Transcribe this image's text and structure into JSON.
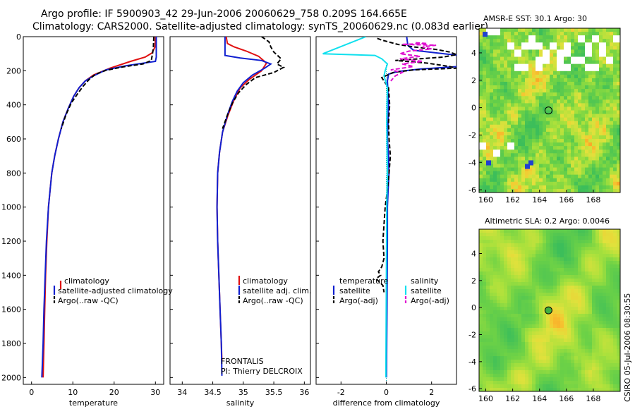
{
  "figure": {
    "title_line1": "Argo profile: IF 5900903_42 29-Jun-2006 20060629_758 0.209S 164.665E",
    "title_line2": "Climatology: CARS2000. Satellite-adjusted climatology: synTS_20060629.nc (0.083d earlier)",
    "side_label": "CSIRO 05-Jul-2006 08:30:55",
    "colors": {
      "red": "#e01010",
      "blue": "#1020d0",
      "black": "#000000",
      "cyan": "#10e0ee",
      "magenta": "#e010d0"
    }
  },
  "chart_data": [
    {
      "type": "line",
      "panel": "temperature",
      "xlabel": "temperature",
      "xlim": [
        -2,
        32
      ],
      "ylim": [
        2040,
        0
      ],
      "xticks": [
        0,
        10,
        20,
        30
      ],
      "yticks": [
        0,
        200,
        400,
        600,
        800,
        1000,
        1200,
        1400,
        1600,
        1800,
        2000
      ],
      "legend": [
        "climatology",
        "satellite-adjusted climatology",
        "Argo(..raw -QC)"
      ],
      "series": [
        {
          "name": "climatology",
          "color": "red",
          "style": "solid",
          "points": [
            [
              30,
              0
            ],
            [
              29.9,
              60
            ],
            [
              29.2,
              95
            ],
            [
              27.5,
              120
            ],
            [
              24,
              145
            ],
            [
              19,
              185
            ],
            [
              15,
              225
            ],
            [
              13,
              260
            ],
            [
              11.5,
              300
            ],
            [
              10.2,
              350
            ],
            [
              8.9,
              420
            ],
            [
              7.6,
              500
            ],
            [
              6.5,
              600
            ],
            [
              5.6,
              700
            ],
            [
              4.9,
              800
            ],
            [
              4.5,
              900
            ],
            [
              4.1,
              1000
            ],
            [
              3.7,
              1200
            ],
            [
              3.4,
              1400
            ],
            [
              3.2,
              1600
            ],
            [
              3.0,
              1800
            ],
            [
              2.8,
              2000
            ]
          ]
        },
        {
          "name": "satellite-adjusted climatology",
          "color": "blue",
          "style": "solid",
          "points": [
            [
              30.2,
              0
            ],
            [
              30.2,
              120
            ],
            [
              30,
              145
            ],
            [
              28,
              152
            ],
            [
              23,
              170
            ],
            [
              18,
              195
            ],
            [
              15,
              230
            ],
            [
              13,
              260
            ],
            [
              11.5,
              300
            ],
            [
              10.2,
              350
            ],
            [
              8.9,
              420
            ],
            [
              7.6,
              500
            ],
            [
              6.5,
              600
            ],
            [
              5.6,
              700
            ],
            [
              4.9,
              800
            ],
            [
              4.5,
              900
            ],
            [
              4.1,
              1000
            ],
            [
              3.6,
              1200
            ],
            [
              3.3,
              1400
            ],
            [
              3.0,
              1600
            ],
            [
              2.8,
              1800
            ],
            [
              2.5,
              2000
            ]
          ]
        },
        {
          "name": "Argo(..raw -QC)",
          "color": "black",
          "style": "dashed",
          "points": [
            [
              29.6,
              0
            ],
            [
              29.5,
              60
            ],
            [
              29.3,
              100
            ],
            [
              29,
              140
            ],
            [
              27,
              160
            ],
            [
              22,
              178
            ],
            [
              18,
              198
            ],
            [
              15.5,
              220
            ],
            [
              14,
              250
            ],
            [
              12.5,
              290
            ],
            [
              11,
              340
            ],
            [
              9.6,
              390
            ],
            [
              8.3,
              460
            ],
            [
              7.2,
              540
            ]
          ]
        }
      ]
    },
    {
      "type": "line",
      "panel": "salinity",
      "xlabel": "salinity",
      "xlim": [
        33.8,
        36.1
      ],
      "ylim": [
        2040,
        0
      ],
      "xticks": [
        34,
        34.5,
        35,
        35.5,
        36
      ],
      "legend": [
        "climatology",
        "satellite adj. clim.",
        "Argo(..raw -QC)"
      ],
      "annotations": [
        "FRONTALIS",
        "PI: Thierry DELCROIX"
      ],
      "series": [
        {
          "name": "climatology",
          "color": "red",
          "style": "solid",
          "points": [
            [
              34.72,
              0
            ],
            [
              34.74,
              40
            ],
            [
              34.85,
              60
            ],
            [
              35.05,
              85
            ],
            [
              35.25,
              115
            ],
            [
              35.38,
              155
            ],
            [
              35.3,
              200
            ],
            [
              35.1,
              250
            ],
            [
              34.95,
              300
            ],
            [
              34.85,
              370
            ],
            [
              34.75,
              460
            ],
            [
              34.66,
              560
            ],
            [
              34.61,
              680
            ],
            [
              34.58,
              800
            ],
            [
              34.57,
              1000
            ],
            [
              34.58,
              1200
            ],
            [
              34.6,
              1400
            ],
            [
              34.62,
              1600
            ],
            [
              34.64,
              1800
            ],
            [
              34.65,
              1900
            ]
          ]
        },
        {
          "name": "satellite adj. clim.",
          "color": "blue",
          "style": "solid",
          "points": [
            [
              34.7,
              0
            ],
            [
              34.7,
              110
            ],
            [
              34.95,
              125
            ],
            [
              35.3,
              140
            ],
            [
              35.45,
              160
            ],
            [
              35.35,
              185
            ],
            [
              35.15,
              225
            ],
            [
              35.0,
              270
            ],
            [
              34.9,
              320
            ],
            [
              34.82,
              380
            ],
            [
              34.74,
              460
            ],
            [
              34.66,
              560
            ],
            [
              34.61,
              680
            ],
            [
              34.58,
              800
            ],
            [
              34.57,
              1000
            ],
            [
              34.58,
              1200
            ],
            [
              34.6,
              1400
            ],
            [
              34.62,
              1600
            ],
            [
              34.64,
              1800
            ],
            [
              34.65,
              1990
            ]
          ]
        },
        {
          "name": "Argo(..raw -QC)",
          "color": "black",
          "style": "dashed",
          "points": [
            [
              35.3,
              0
            ],
            [
              35.42,
              30
            ],
            [
              35.45,
              60
            ],
            [
              35.5,
              90
            ],
            [
              35.62,
              130
            ],
            [
              35.55,
              160
            ],
            [
              35.66,
              180
            ],
            [
              35.5,
              210
            ],
            [
              35.2,
              240
            ],
            [
              35.05,
              280
            ],
            [
              34.92,
              330
            ],
            [
              34.82,
              390
            ],
            [
              34.74,
              460
            ],
            [
              34.66,
              540
            ]
          ]
        }
      ]
    },
    {
      "type": "line",
      "panel": "difference",
      "xlabel": "difference from climatology",
      "xlim": [
        -3.1,
        3.1
      ],
      "ylim": [
        2040,
        0
      ],
      "xticks": [
        -2,
        0,
        2
      ],
      "legend": [
        "temperature",
        "satellite",
        "Argo(-adj)",
        "salinity",
        "satellite",
        "Argo(-adj)"
      ],
      "series": [
        {
          "name": "temperature satellite",
          "color": "blue",
          "style": "solid",
          "points": [
            [
              0.9,
              0
            ],
            [
              0.95,
              50
            ],
            [
              1.2,
              80
            ],
            [
              3.2,
              110
            ],
            [
              3.2,
              175
            ],
            [
              1.5,
              190
            ],
            [
              0.5,
              205
            ],
            [
              0.1,
              220
            ],
            [
              0.05,
              260
            ],
            [
              0.1,
              400
            ],
            [
              0.08,
              500
            ],
            [
              0.05,
              600
            ],
            [
              0.1,
              700
            ],
            [
              0.12,
              800
            ],
            [
              0.08,
              900
            ],
            [
              0.05,
              1000
            ],
            [
              0.05,
              1200
            ],
            [
              0.04,
              1400
            ],
            [
              0.03,
              1600
            ],
            [
              0.02,
              1800
            ],
            [
              0.01,
              2000
            ]
          ]
        },
        {
          "name": "temperature Argo(-adj)",
          "color": "black",
          "style": "dashed",
          "points": [
            [
              -0.4,
              10
            ],
            [
              -0.2,
              20
            ],
            [
              0.5,
              45
            ],
            [
              1.2,
              60
            ],
            [
              2.2,
              75
            ],
            [
              2.8,
              90
            ],
            [
              3.1,
              105
            ],
            [
              2.5,
              120
            ],
            [
              0.4,
              140
            ],
            [
              1.8,
              155
            ],
            [
              2.8,
              175
            ],
            [
              3.1,
              185
            ],
            [
              1.2,
              195
            ],
            [
              0.3,
              210
            ],
            [
              -0.2,
              240
            ],
            [
              0.1,
              300
            ],
            [
              0.15,
              400
            ],
            [
              0.1,
              500
            ],
            [
              0.12,
              600
            ],
            [
              0.18,
              700
            ],
            [
              0.12,
              800
            ],
            [
              0.05,
              900
            ],
            [
              -0.05,
              1000
            ],
            [
              -0.1,
              1100
            ],
            [
              -0.15,
              1200
            ],
            [
              -0.1,
              1300
            ],
            [
              -0.2,
              1350
            ],
            [
              -0.35,
              1380
            ],
            [
              -0.25,
              1400
            ],
            [
              -0.45,
              1420
            ],
            [
              -0.15,
              1460
            ],
            [
              -0.1,
              1500
            ]
          ]
        },
        {
          "name": "salinity satellite",
          "color": "cyan",
          "style": "solid",
          "points": [
            [
              -0.9,
              0
            ],
            [
              -2.8,
              100
            ],
            [
              -0.5,
              110
            ],
            [
              -0.2,
              130
            ],
            [
              0.05,
              160
            ],
            [
              -0.05,
              200
            ],
            [
              -0.1,
              230
            ],
            [
              0.05,
              300
            ],
            [
              0.02,
              500
            ],
            [
              0.05,
              800
            ],
            [
              0.02,
              1000
            ],
            [
              0.0,
              1500
            ],
            [
              -0.02,
              2000
            ]
          ]
        },
        {
          "name": "salinity Argo(-adj)",
          "color": "magenta",
          "style": "dashed",
          "points": [
            [
              1.3,
              35
            ],
            [
              1.8,
              40
            ],
            [
              0.7,
              45
            ],
            [
              2.2,
              50
            ],
            [
              1.6,
              60
            ],
            [
              2.0,
              72
            ],
            [
              1.0,
              85
            ],
            [
              0.6,
              100
            ],
            [
              1.5,
              115
            ],
            [
              0.6,
              130
            ],
            [
              1.6,
              145
            ],
            [
              0.7,
              160
            ],
            [
              1.2,
              175
            ],
            [
              0.2,
              195
            ],
            [
              0.7,
              210
            ],
            [
              0.4,
              230
            ],
            [
              0.2,
              260
            ]
          ]
        }
      ]
    },
    {
      "type": "heatmap",
      "panel": "sst-map",
      "title": "AMSR-E SST: 30.1 Argo: 30",
      "xlim": [
        159.5,
        170
      ],
      "ylim": [
        -6.2,
        5.8
      ],
      "xticks": [
        160,
        162,
        164,
        166,
        168
      ],
      "yticks": [
        -6,
        -4,
        -2,
        0,
        2,
        4
      ],
      "marker": [
        164.665,
        -0.209
      ]
    },
    {
      "type": "heatmap",
      "panel": "sla-map",
      "title": "Altimetric SLA: 0.2 Argo: 0.0046",
      "xlim": [
        159.5,
        170
      ],
      "ylim": [
        -6.2,
        5.8
      ],
      "xticks": [
        160,
        162,
        164,
        166,
        168
      ],
      "yticks": [
        -6,
        -4,
        -2,
        0,
        2,
        4
      ],
      "marker": [
        164.665,
        -0.209
      ]
    }
  ]
}
